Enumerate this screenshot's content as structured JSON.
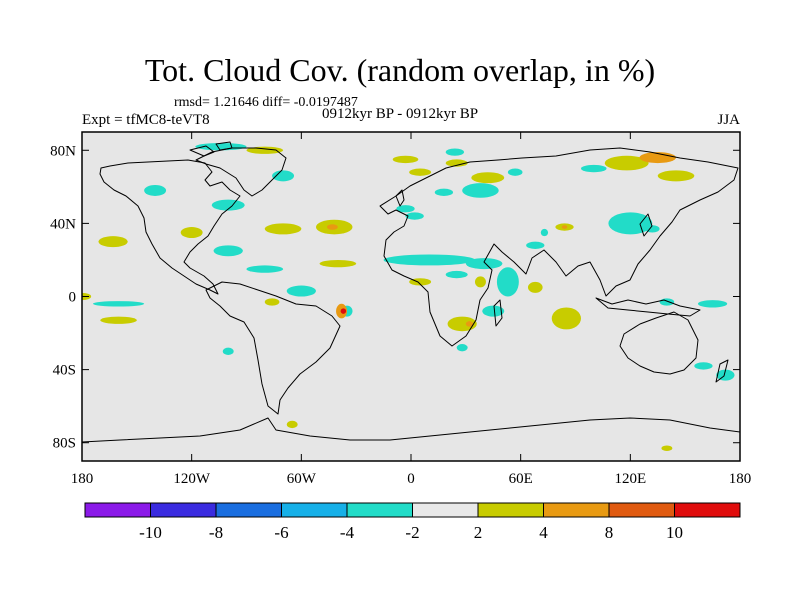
{
  "chart_data": {
    "type": "heatmap",
    "title": "Tot. Cloud Cov. (random overlap, in %)",
    "stats": "rmsd= 1.21646 diff= -0.0197487",
    "experiment": "Expt = tfMC8-teVT8",
    "period": "0912kyr BP - 0912kyr BP",
    "season": "JJA",
    "xlim": [
      -180,
      180
    ],
    "ylim": [
      -90,
      90
    ],
    "x_ticks": [
      {
        "value": -180,
        "label": "180"
      },
      {
        "value": -120,
        "label": "120W"
      },
      {
        "value": -60,
        "label": "60W"
      },
      {
        "value": 0,
        "label": "0"
      },
      {
        "value": 60,
        "label": "60E"
      },
      {
        "value": 120,
        "label": "120E"
      },
      {
        "value": 180,
        "label": "180"
      }
    ],
    "y_ticks": [
      {
        "value": 80,
        "label": "80N"
      },
      {
        "value": 40,
        "label": "40N"
      },
      {
        "value": 0,
        "label": "0"
      },
      {
        "value": -40,
        "label": "40S"
      },
      {
        "value": -80,
        "label": "80S"
      }
    ],
    "colorbar": {
      "levels": [
        "-10",
        "-8",
        "-6",
        "-4",
        "-2",
        "2",
        "4",
        "8",
        "10"
      ],
      "colors": [
        "#8b1ae8",
        "#3a2be0",
        "#1a6ee0",
        "#16b0e8",
        "#22dcc8",
        "#e8e8e8",
        "#c8cc00",
        "#e89a12",
        "#e05a10",
        "#e00c0c"
      ]
    },
    "anomalies": [
      {
        "lon": -104,
        "lat": 82,
        "rx": 14,
        "ry": 2,
        "level": "-4 to -2"
      },
      {
        "lon": -80,
        "lat": 80,
        "rx": 10,
        "ry": 2,
        "level": "2 to 4"
      },
      {
        "lon": -70,
        "lat": 66,
        "rx": 6,
        "ry": 3,
        "level": "-4 to -2"
      },
      {
        "lon": -140,
        "lat": 58,
        "rx": 6,
        "ry": 3,
        "level": "-4 to -2"
      },
      {
        "lon": -100,
        "lat": 50,
        "rx": 9,
        "ry": 3,
        "level": "-4 to -2"
      },
      {
        "lon": -120,
        "lat": 35,
        "rx": 6,
        "ry": 3,
        "level": "2 to 4"
      },
      {
        "lon": -163,
        "lat": 30,
        "rx": 8,
        "ry": 3,
        "level": "2 to 4"
      },
      {
        "lon": -70,
        "lat": 37,
        "rx": 10,
        "ry": 3,
        "level": "2 to 4"
      },
      {
        "lon": -42,
        "lat": 38,
        "rx": 10,
        "ry": 4,
        "level": "2 to 4"
      },
      {
        "lon": -43,
        "lat": 38,
        "rx": 3,
        "ry": 1.5,
        "level": "4 to 8"
      },
      {
        "lon": -100,
        "lat": 25,
        "rx": 8,
        "ry": 3,
        "level": "-4 to -2"
      },
      {
        "lon": -80,
        "lat": 15,
        "rx": 10,
        "ry": 2,
        "level": "-4 to -2"
      },
      {
        "lon": -40,
        "lat": 18,
        "rx": 10,
        "ry": 2,
        "level": "2 to 4"
      },
      {
        "lon": -60,
        "lat": 3,
        "rx": 8,
        "ry": 3,
        "level": "-4 to -2"
      },
      {
        "lon": -76,
        "lat": -3,
        "rx": 4,
        "ry": 2,
        "level": "2 to 4"
      },
      {
        "lon": -35,
        "lat": -8,
        "rx": 3,
        "ry": 3,
        "level": "-4 to -2"
      },
      {
        "lon": -38,
        "lat": -8,
        "rx": 3,
        "ry": 4,
        "level": "4 to 8"
      },
      {
        "lon": -37,
        "lat": -8,
        "rx": 1.5,
        "ry": 1.5,
        "level": "8 to 10"
      },
      {
        "lon": -160,
        "lat": -13,
        "rx": 10,
        "ry": 2,
        "level": "2 to 4"
      },
      {
        "lon": -160,
        "lat": -4,
        "rx": 14,
        "ry": 1.5,
        "level": "-4 to -2"
      },
      {
        "lon": -180,
        "lat": 0,
        "rx": 5,
        "ry": 2,
        "level": "2 to 4"
      },
      {
        "lon": -100,
        "lat": -30,
        "rx": 3,
        "ry": 2,
        "level": "-4 to -2"
      },
      {
        "lon": 5,
        "lat": 68,
        "rx": 6,
        "ry": 2,
        "level": "2 to 4"
      },
      {
        "lon": 18,
        "lat": 57,
        "rx": 5,
        "ry": 2,
        "level": "-4 to -2"
      },
      {
        "lon": 38,
        "lat": 58,
        "rx": 10,
        "ry": 4,
        "level": "-4 to -2"
      },
      {
        "lon": 42,
        "lat": 65,
        "rx": 9,
        "ry": 3,
        "level": "2 to 4"
      },
      {
        "lon": 57,
        "lat": 68,
        "rx": 4,
        "ry": 2,
        "level": "-4 to -2"
      },
      {
        "lon": -3,
        "lat": 48,
        "rx": 5,
        "ry": 2,
        "level": "-4 to -2"
      },
      {
        "lon": 2,
        "lat": 44,
        "rx": 5,
        "ry": 2,
        "level": "-4 to -2"
      },
      {
        "lon": -3,
        "lat": 75,
        "rx": 7,
        "ry": 2,
        "level": "2 to 4"
      },
      {
        "lon": 25,
        "lat": 73,
        "rx": 6,
        "ry": 2,
        "level": "2 to 4"
      },
      {
        "lon": 24,
        "lat": 79,
        "rx": 5,
        "ry": 2,
        "level": "-4 to -2"
      },
      {
        "lon": 100,
        "lat": 70,
        "rx": 7,
        "ry": 2,
        "level": "-4 to -2"
      },
      {
        "lon": 118,
        "lat": 73,
        "rx": 12,
        "ry": 4,
        "level": "2 to 4"
      },
      {
        "lon": 135,
        "lat": 76,
        "rx": 10,
        "ry": 3,
        "level": "4 to 8"
      },
      {
        "lon": 145,
        "lat": 66,
        "rx": 10,
        "ry": 3,
        "level": "2 to 4"
      },
      {
        "lon": 120,
        "lat": 40,
        "rx": 12,
        "ry": 6,
        "level": "-4 to -2"
      },
      {
        "lon": 132,
        "lat": 37,
        "rx": 4,
        "ry": 2,
        "level": "-4 to -2"
      },
      {
        "lon": 84,
        "lat": 38,
        "rx": 5,
        "ry": 2,
        "level": "2 to 4"
      },
      {
        "lon": 84,
        "lat": 38,
        "rx": 1.5,
        "ry": 1,
        "level": "4 to 8"
      },
      {
        "lon": 73,
        "lat": 35,
        "rx": 2,
        "ry": 2,
        "level": "-4 to -2"
      },
      {
        "lon": 68,
        "lat": 28,
        "rx": 5,
        "ry": 2,
        "level": "-4 to -2"
      },
      {
        "lon": 10,
        "lat": 20,
        "rx": 25,
        "ry": 3,
        "level": "-4 to -2"
      },
      {
        "lon": 40,
        "lat": 18,
        "rx": 10,
        "ry": 3,
        "level": "-4 to -2"
      },
      {
        "lon": 25,
        "lat": 12,
        "rx": 6,
        "ry": 2,
        "level": "-4 to -2"
      },
      {
        "lon": 53,
        "lat": 8,
        "rx": 6,
        "ry": 8,
        "level": "-4 to -2"
      },
      {
        "lon": 5,
        "lat": 8,
        "rx": 6,
        "ry": 2,
        "level": "2 to 4"
      },
      {
        "lon": 38,
        "lat": 8,
        "rx": 3,
        "ry": 3,
        "level": "2 to 4"
      },
      {
        "lon": 68,
        "lat": 5,
        "rx": 4,
        "ry": 3,
        "level": "2 to 4"
      },
      {
        "lon": 28,
        "lat": -15,
        "rx": 8,
        "ry": 4,
        "level": "2 to 4"
      },
      {
        "lon": 32,
        "lat": -15,
        "rx": 2,
        "ry": 1.5,
        "level": "4 to 8"
      },
      {
        "lon": 45,
        "lat": -8,
        "rx": 6,
        "ry": 3,
        "level": "-4 to -2"
      },
      {
        "lon": 28,
        "lat": -28,
        "rx": 3,
        "ry": 2,
        "level": "-4 to -2"
      },
      {
        "lon": 85,
        "lat": -12,
        "rx": 8,
        "ry": 6,
        "level": "2 to 4"
      },
      {
        "lon": 140,
        "lat": -3,
        "rx": 4,
        "ry": 2,
        "level": "-4 to -2"
      },
      {
        "lon": 165,
        "lat": -4,
        "rx": 8,
        "ry": 2,
        "level": "-4 to -2"
      },
      {
        "lon": 160,
        "lat": -38,
        "rx": 5,
        "ry": 2,
        "level": "-4 to -2"
      },
      {
        "lon": 172,
        "lat": -43,
        "rx": 5,
        "ry": 3,
        "level": "-4 to -2"
      },
      {
        "lon": -65,
        "lat": -70,
        "rx": 3,
        "ry": 2,
        "level": "2 to 4"
      },
      {
        "lon": 140,
        "lat": -83,
        "rx": 3,
        "ry": 1.5,
        "level": "2 to 4"
      }
    ]
  }
}
